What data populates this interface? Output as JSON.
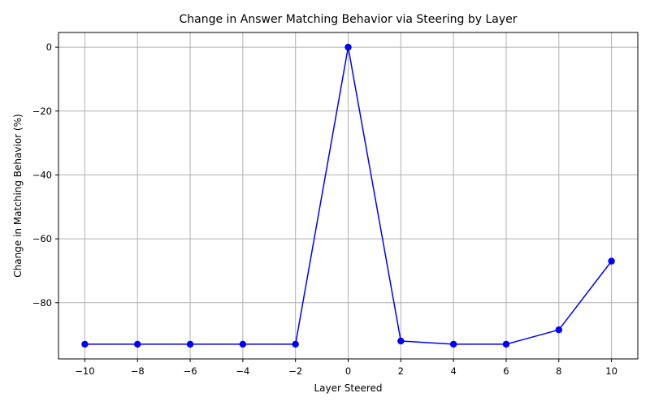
{
  "chart_data": {
    "type": "line",
    "title": "Change in Answer Matching Behavior via Steering by Layer",
    "xlabel": "Layer Steered",
    "ylabel": "Change in Matching Behavior (%)",
    "x": [
      -10,
      -8,
      -6,
      -4,
      -2,
      0,
      2,
      4,
      6,
      8,
      10
    ],
    "series": [
      {
        "values": [
          -93,
          -93,
          -93,
          -93,
          -93,
          0,
          -92,
          -93,
          -93,
          -88.5,
          -67
        ],
        "color": "#0000ff",
        "marker": "circle"
      }
    ],
    "xlim": [
      -11,
      11
    ],
    "ylim": [
      -97.6,
      4.6
    ],
    "xticks": [
      -10,
      -8,
      -6,
      -4,
      -2,
      0,
      2,
      4,
      6,
      8,
      10
    ],
    "yticks": [
      0,
      -20,
      -40,
      -60,
      -80
    ],
    "grid": true,
    "legend": false
  }
}
